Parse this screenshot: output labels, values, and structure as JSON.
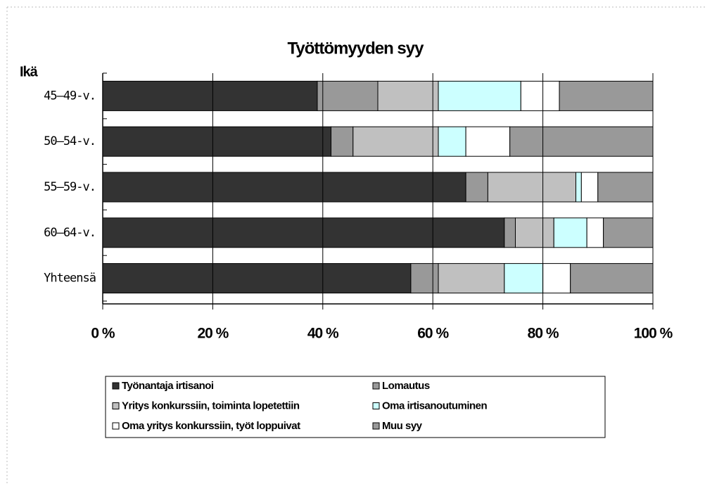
{
  "chart_data": {
    "type": "stacked_barh",
    "title": "Työttömyyden syy",
    "y_label": "Ikä",
    "categories": [
      "45–49-v.",
      "50–54-v.",
      "55–59-v.",
      "60–64-v.",
      "Yhteensä"
    ],
    "series": [
      {
        "name": "Työnantaja irtisanoi",
        "color": "#333333",
        "values": [
          39,
          41.5,
          66,
          73,
          56
        ]
      },
      {
        "name": "Lomautus",
        "color": "#999999",
        "values": [
          11,
          4,
          4,
          2,
          5
        ]
      },
      {
        "name": "Yritys konkurssiin, toiminta lopetettiin",
        "color": "#c0c0c0",
        "values": [
          11,
          15.5,
          16,
          7,
          12
        ]
      },
      {
        "name": "Oma irtisanoutuminen",
        "color": "#ccffff",
        "values": [
          15,
          5,
          1,
          6,
          7
        ]
      },
      {
        "name": "Oma yritys konkurssiin, työt loppuivat",
        "color": "#ffffff",
        "values": [
          7,
          8,
          3,
          3,
          5
        ]
      },
      {
        "name": "Muu syy",
        "color": "#999999",
        "values": [
          17,
          26,
          10,
          9,
          15
        ]
      }
    ],
    "xlim": [
      0,
      100
    ],
    "xticks": [
      {
        "value": 0,
        "label": "0 %"
      },
      {
        "value": 20,
        "label": "20 %"
      },
      {
        "value": 40,
        "label": "40 %"
      },
      {
        "value": 60,
        "label": "60 %"
      },
      {
        "value": 80,
        "label": "80 %"
      },
      {
        "value": 100,
        "label": "100 %"
      }
    ],
    "grid": true
  }
}
